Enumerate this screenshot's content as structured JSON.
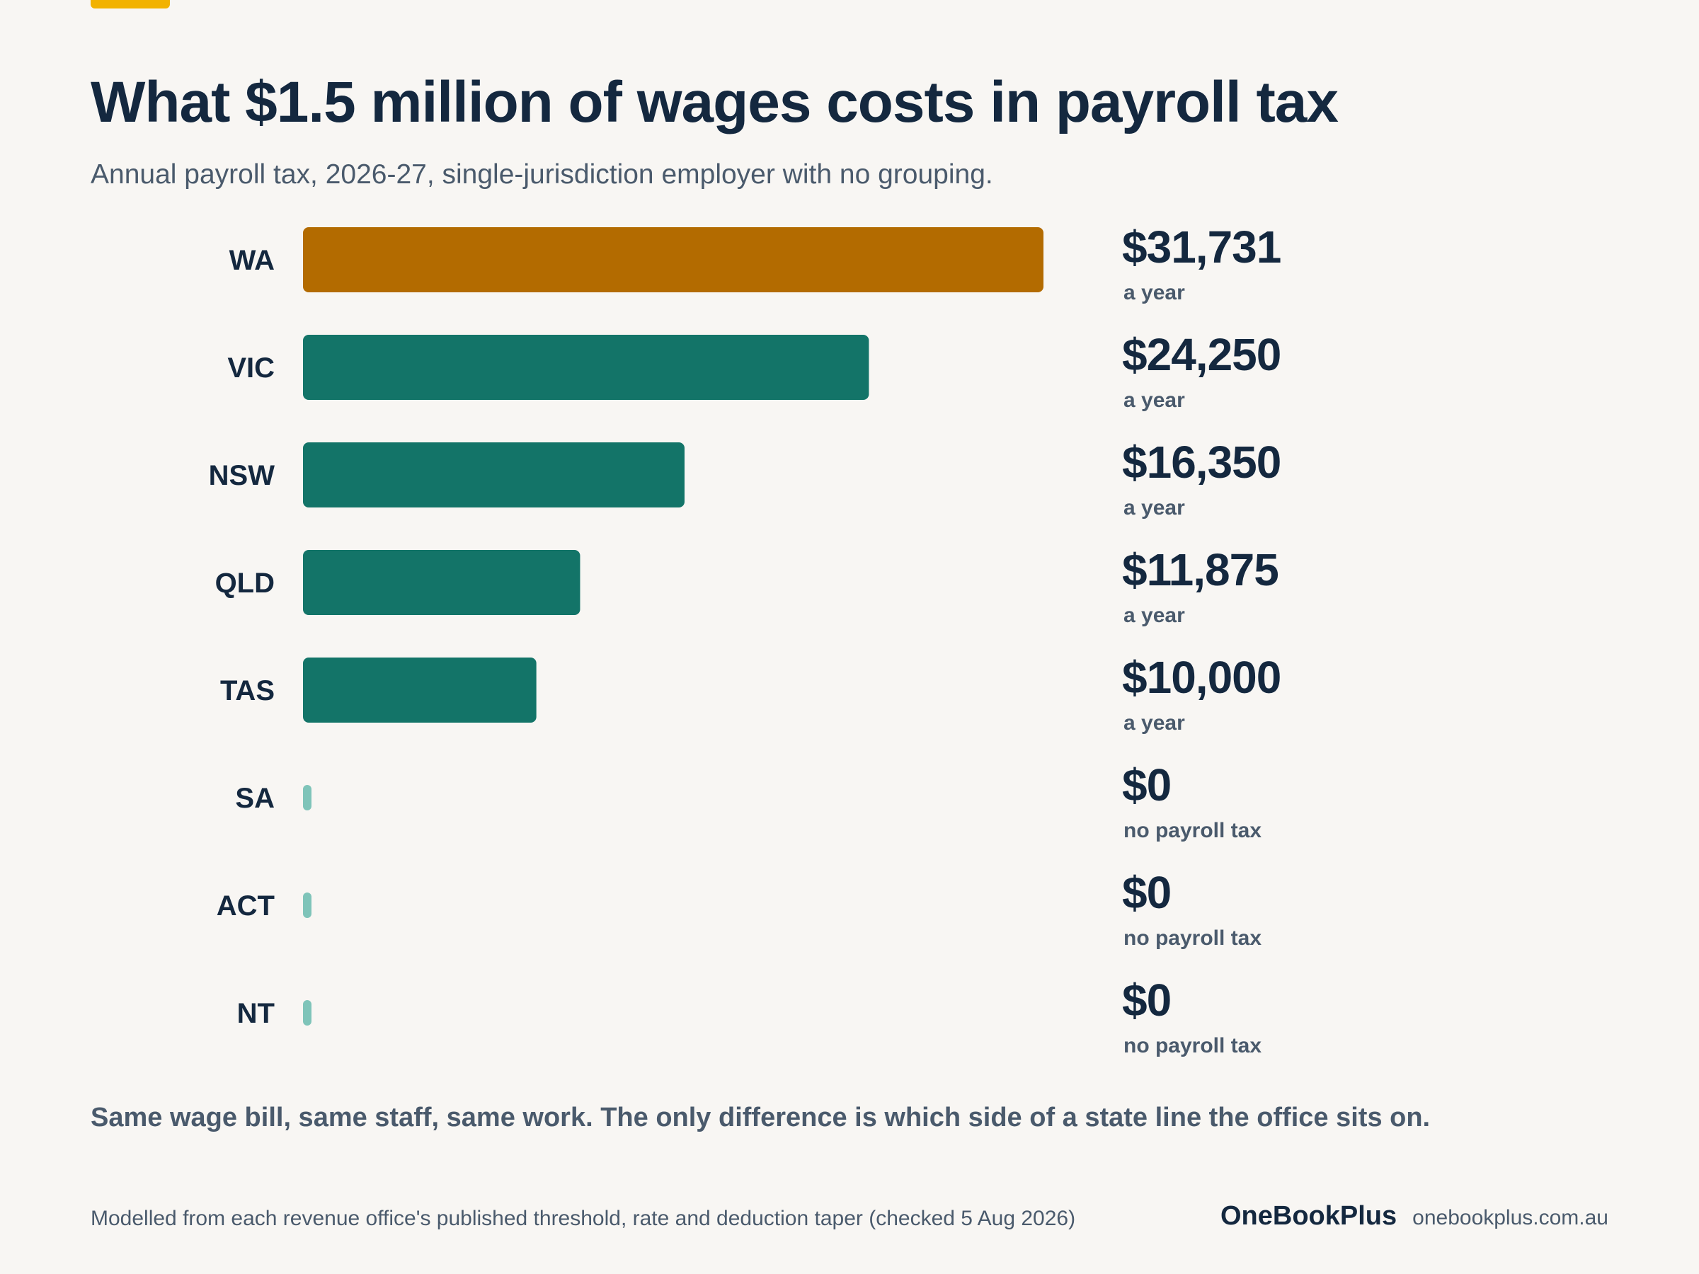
{
  "header": {
    "title": "What $1.5 million of wages costs in payroll tax",
    "subtitle": "Annual payroll tax, 2026-27, single-jurisdiction employer with no grouping."
  },
  "chart_data": {
    "type": "bar",
    "orientation": "horizontal",
    "title": "What $1.5 million of wages costs in payroll tax",
    "subtitle": "Annual payroll tax, 2026-27, single-jurisdiction employer with no grouping.",
    "categories": [
      "WA",
      "VIC",
      "NSW",
      "QLD",
      "TAS",
      "SA",
      "ACT",
      "NT"
    ],
    "values": [
      31731,
      24250,
      16350,
      11875,
      10000,
      0,
      0,
      0
    ],
    "value_labels": [
      "$31,731",
      "$24,250",
      "$16,350",
      "$11,875",
      "$10,000",
      "$0",
      "$0",
      "$0"
    ],
    "sub_labels": [
      "a year",
      "a year",
      "a year",
      "a year",
      "a year",
      "no payroll tax",
      "no payroll tax",
      "no payroll tax"
    ],
    "xlim": [
      0,
      31731
    ],
    "grid": false,
    "colors": {
      "highlight": "#b36b00",
      "default": "#137468",
      "zero": "#7fc4b9",
      "value_text": "#14283f",
      "sub_text": "#4a5a6c",
      "category_text": "#14283f"
    },
    "highlight_category": "WA"
  },
  "footer": {
    "takeaway": "Same wage bill, same staff, same work. The only difference is which side of a state line the office sits on.",
    "source": "Modelled from each revenue office's published threshold, rate and deduction taper (checked 5 Aug 2026)",
    "brand_name": "OneBookPlus",
    "brand_url": "onebookplus.com.au"
  }
}
